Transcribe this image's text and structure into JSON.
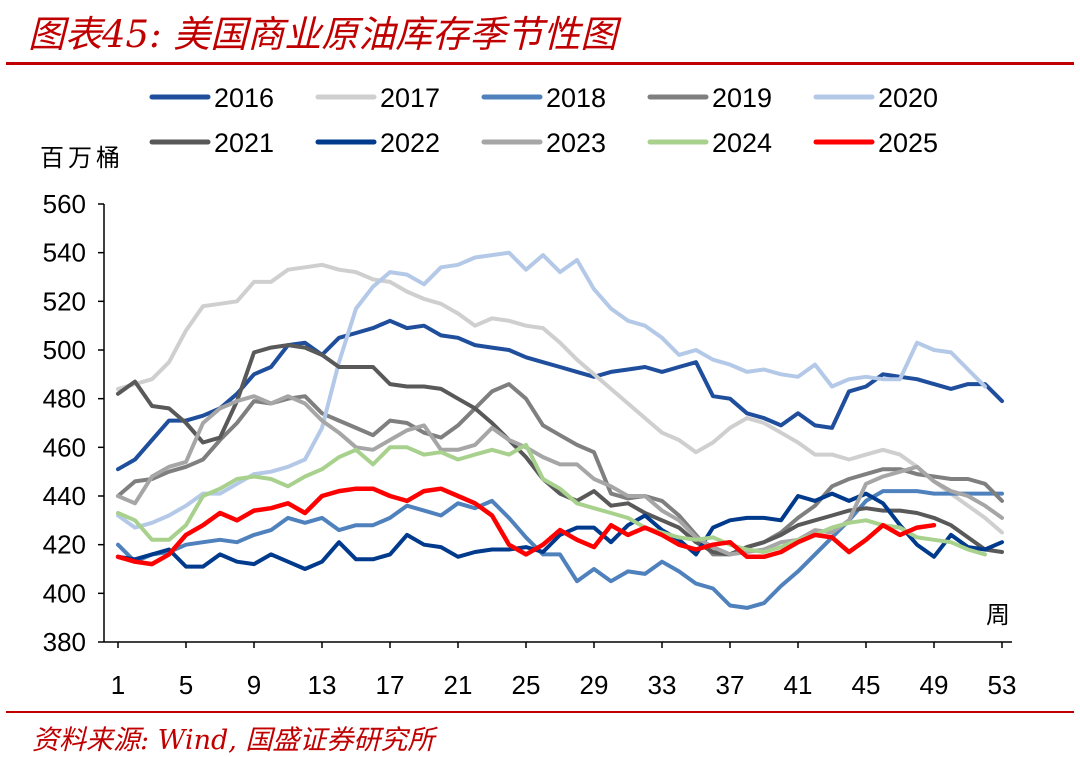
{
  "header": {
    "title": "图表45:  美国商业原油库存季节性图"
  },
  "footer": {
    "source": "资料来源: Wind, 国盛证券研究所"
  },
  "chart_data": {
    "type": "line",
    "title": "",
    "ylabel": "百万桶",
    "xlabel": "周",
    "ylim": [
      380,
      560
    ],
    "yticks": [
      380,
      400,
      420,
      440,
      460,
      480,
      500,
      520,
      540,
      560
    ],
    "xlim": [
      1,
      53
    ],
    "xticks": [
      1,
      5,
      9,
      13,
      17,
      21,
      25,
      29,
      33,
      37,
      41,
      45,
      49,
      53
    ],
    "grid": false,
    "legend": "top",
    "series": [
      {
        "name": "2016",
        "color": "#1f4e9c",
        "x_start": 1,
        "values": [
          451,
          455,
          463,
          471,
          471,
          473,
          476,
          482,
          490,
          493,
          502,
          503,
          498,
          505,
          507,
          509,
          512,
          509,
          510,
          506,
          505,
          502,
          501,
          500,
          497,
          495,
          493,
          491,
          489,
          491,
          492,
          493,
          491,
          493,
          495,
          481,
          480,
          474,
          472,
          469,
          474,
          469,
          468,
          483,
          485,
          490,
          489,
          488,
          486,
          484,
          486,
          486,
          479
        ]
      },
      {
        "name": "2017",
        "color": "#cfcfcf",
        "x_start": 1,
        "values": [
          484,
          486,
          488,
          495,
          508,
          518,
          519,
          520,
          528,
          528,
          533,
          534,
          535,
          533,
          532,
          529,
          528,
          524,
          521,
          519,
          515,
          510,
          513,
          512,
          510,
          509,
          503,
          496,
          490,
          484,
          478,
          472,
          466,
          463,
          458,
          462,
          468,
          472,
          470,
          466,
          462,
          457,
          457,
          455,
          457,
          459,
          457,
          452,
          446,
          441,
          436,
          431,
          425
        ]
      },
      {
        "name": "2018",
        "color": "#4f81bd",
        "x_start": 1,
        "values": [
          420,
          413,
          416,
          417,
          420,
          421,
          422,
          421,
          424,
          426,
          431,
          429,
          431,
          426,
          428,
          428,
          431,
          436,
          434,
          432,
          437,
          435,
          438,
          431,
          423,
          416,
          416,
          405,
          410,
          405,
          409,
          408,
          413,
          409,
          404,
          402,
          395,
          394,
          396,
          403,
          409,
          416,
          423,
          430,
          438,
          442,
          442,
          442,
          441,
          441,
          441,
          441,
          441
        ]
      },
      {
        "name": "2019",
        "color": "#7f7f7f",
        "x_start": 1,
        "values": [
          440,
          446,
          447,
          450,
          452,
          455,
          463,
          470,
          479,
          478,
          480,
          481,
          474,
          471,
          468,
          465,
          471,
          470,
          466,
          464,
          469,
          476,
          483,
          486,
          480,
          469,
          465,
          461,
          458,
          441,
          439,
          440,
          438,
          432,
          424,
          416,
          416,
          419,
          421,
          425,
          431,
          436,
          444,
          447,
          449,
          451,
          451,
          449,
          448,
          447,
          447,
          445,
          438
        ]
      },
      {
        "name": "2020",
        "color": "#b4c9e7",
        "x_start": 1,
        "values": [
          432,
          427,
          429,
          432,
          436,
          441,
          441,
          445,
          449,
          450,
          452,
          455,
          468,
          495,
          517,
          526,
          532,
          531,
          527,
          534,
          535,
          538,
          539,
          540,
          533,
          539,
          532,
          537,
          525,
          517,
          512,
          510,
          505,
          498,
          500,
          496,
          494,
          491,
          492,
          490,
          489,
          494,
          485,
          488,
          489,
          488,
          488,
          503,
          500,
          499,
          492,
          485
        ]
      },
      {
        "name": "2021",
        "color": "#595959",
        "x_start": 1,
        "values": [
          482,
          487,
          477,
          476,
          470,
          462,
          464,
          479,
          499,
          501,
          502,
          501,
          498,
          493,
          493,
          493,
          486,
          485,
          485,
          484,
          480,
          476,
          470,
          463,
          456,
          447,
          441,
          438,
          442,
          436,
          437,
          433,
          430,
          427,
          421,
          417,
          416,
          419,
          421,
          424,
          428,
          430,
          432,
          434,
          435,
          434,
          434,
          433,
          431,
          428,
          423,
          418,
          417
        ]
      },
      {
        "name": "2022",
        "color": "#003a8c",
        "x_start": 1,
        "values": [
          415,
          414,
          416,
          418,
          411,
          411,
          416,
          413,
          412,
          416,
          413,
          410,
          413,
          421,
          414,
          414,
          416,
          424,
          420,
          419,
          415,
          417,
          418,
          418,
          419,
          417,
          424,
          427,
          427,
          421,
          428,
          432,
          426,
          422,
          416,
          427,
          430,
          431,
          431,
          430,
          440,
          438,
          441,
          438,
          441,
          437,
          428,
          420,
          415,
          424,
          419,
          418,
          421
        ]
      },
      {
        "name": "2023",
        "color": "#a6a6a6",
        "x_start": 1,
        "values": [
          440,
          437,
          448,
          452,
          454,
          470,
          476,
          479,
          481,
          478,
          481,
          478,
          471,
          466,
          460,
          459,
          463,
          467,
          469,
          459,
          459,
          461,
          468,
          463,
          460,
          456,
          453,
          453,
          447,
          444,
          440,
          440,
          434,
          430,
          423,
          419,
          416,
          417,
          418,
          421,
          422,
          426,
          425,
          430,
          445,
          448,
          450,
          452,
          446,
          442,
          440,
          436,
          431
        ]
      },
      {
        "name": "2024",
        "color": "#a9d18e",
        "x_start": 1,
        "values": [
          433,
          430,
          422,
          422,
          428,
          440,
          443,
          447,
          448,
          447,
          444,
          448,
          451,
          456,
          459,
          453,
          460,
          460,
          457,
          458,
          455,
          457,
          459,
          457,
          461,
          447,
          443,
          437,
          435,
          433,
          431,
          427,
          425,
          423,
          422,
          423,
          420,
          418,
          417,
          419,
          422,
          424,
          427,
          429,
          430,
          428,
          427,
          423,
          422,
          421,
          418,
          416
        ]
      },
      {
        "name": "2025",
        "color": "#ff0000",
        "x_start": 1,
        "values": [
          415,
          413,
          412,
          416,
          424,
          428,
          433,
          430,
          434,
          435,
          437,
          433,
          440,
          442,
          443,
          443,
          440,
          438,
          442,
          443,
          440,
          437,
          432,
          420,
          416,
          420,
          426,
          422,
          419,
          428,
          424,
          427,
          424,
          420,
          418,
          420,
          421,
          415,
          415,
          417,
          421,
          424,
          423,
          417,
          422,
          428,
          424,
          427,
          428
        ]
      }
    ]
  }
}
